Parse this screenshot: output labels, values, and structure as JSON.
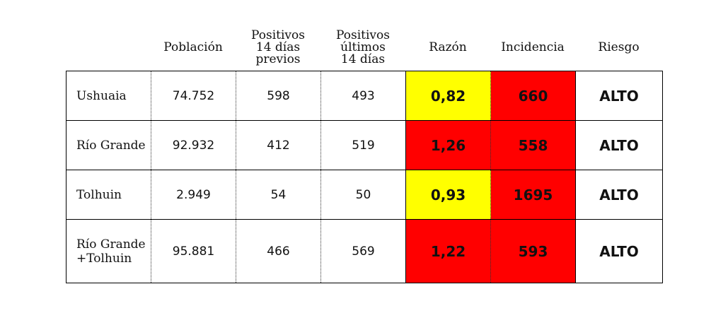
{
  "headers": {
    "poblacion": "Población",
    "previos": "Positivos\n14 días\nprevios",
    "ultimos": "Positivos\núltimos\n14 días",
    "razon": "Razón",
    "incidencia": "Incidencia",
    "riesgo": "Riesgo"
  },
  "colors": {
    "yellow": "#ffff00",
    "red": "#ff0000"
  },
  "rows": [
    {
      "name": "Ushuaia",
      "poblacion": "74.752",
      "previos": "598",
      "ultimos": "493",
      "razon": "0,82",
      "razon_color": "yellow",
      "incidencia": "660",
      "incidencia_color": "red",
      "riesgo": "ALTO"
    },
    {
      "name": "Río Grande",
      "poblacion": "92.932",
      "previos": "412",
      "ultimos": "519",
      "razon": "1,26",
      "razon_color": "red",
      "incidencia": "558",
      "incidencia_color": "red",
      "riesgo": "ALTO"
    },
    {
      "name": "Tolhuin",
      "poblacion": "2.949",
      "previos": "54",
      "ultimos": "50",
      "razon": "0,93",
      "razon_color": "yellow",
      "incidencia": "1695",
      "incidencia_color": "red",
      "riesgo": "ALTO"
    },
    {
      "name": "Río Grande\n+Tolhuin",
      "poblacion": "95.881",
      "previos": "466",
      "ultimos": "569",
      "razon": "1,22",
      "razon_color": "red",
      "incidencia": "593",
      "incidencia_color": "red",
      "riesgo": "ALTO"
    }
  ]
}
